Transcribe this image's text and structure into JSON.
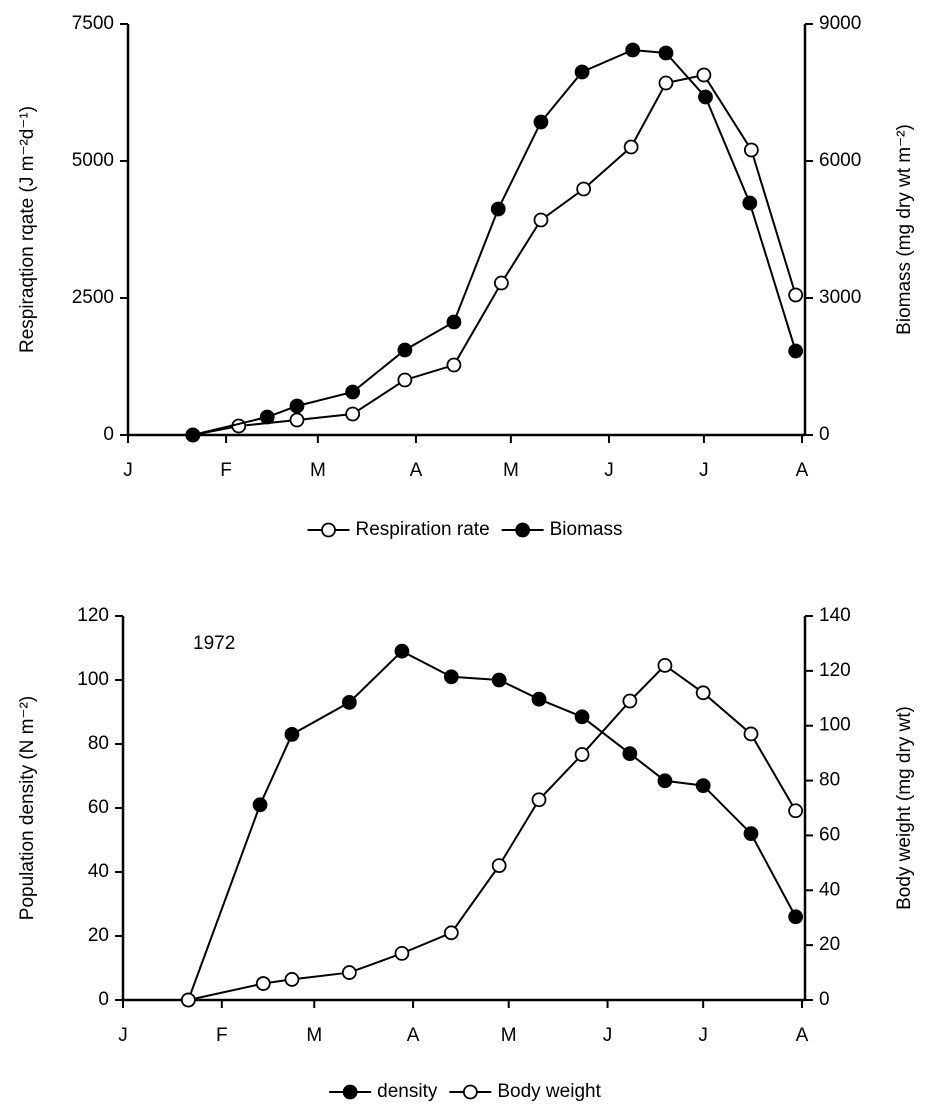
{
  "chart_data": [
    {
      "type": "line",
      "ylabel": "Respiraqtion rqate (J m⁻²d⁻¹)",
      "y2label": "Biomass (mg dry wt m⁻²)",
      "xlim": [
        0,
        213
      ],
      "xticks": [
        {
          "value": 0,
          "label": "J"
        },
        {
          "value": 31,
          "label": "F"
        },
        {
          "value": 60,
          "label": "M"
        },
        {
          "value": 91,
          "label": "A"
        },
        {
          "value": 121,
          "label": "M"
        },
        {
          "value": 152,
          "label": "J"
        },
        {
          "value": 182,
          "label": "J"
        },
        {
          "value": 213,
          "label": "A"
        }
      ],
      "ylim": [
        0,
        7500
      ],
      "yticks": [
        0,
        2500,
        5000,
        7500
      ],
      "y2lim": [
        0,
        9000
      ],
      "y2ticks": [
        0,
        3000,
        6000,
        9000
      ],
      "series": [
        {
          "name": "Respiration rate",
          "color": "#000000",
          "filled": false,
          "x": [
            20.5,
            35,
            53.4,
            71,
            87.5,
            103,
            118,
            130.5,
            144,
            159,
            170,
            182,
            197,
            211
          ],
          "values": [
            0,
            164,
            274,
            383,
            1004,
            1277,
            2774,
            3923,
            4489,
            5255,
            6423,
            6569,
            5201,
            2555
          ]
        },
        {
          "name": "Biomass",
          "color": "#000000",
          "filled": true,
          "axis": "y2",
          "x": [
            20.5,
            44,
            53.4,
            71,
            87.5,
            103,
            117,
            130.5,
            143.5,
            159.5,
            170,
            182.5,
            196.5,
            211
          ],
          "values": [
            0,
            394,
            635,
            942,
            1861,
            2475,
            4949,
            6854,
            7949,
            8431,
            8365,
            7401,
            5080,
            1839
          ]
        }
      ]
    },
    {
      "type": "line",
      "annotation": "1972",
      "ylabel": "Population density (N m⁻²)",
      "y2label": "Body weight (mg dry wt)",
      "xlim": [
        0,
        213
      ],
      "xticks": [
        {
          "value": 0,
          "label": "J"
        },
        {
          "value": 31,
          "label": "F"
        },
        {
          "value": 60,
          "label": "M"
        },
        {
          "value": 91,
          "label": "A"
        },
        {
          "value": 121,
          "label": "M"
        },
        {
          "value": 152,
          "label": "J"
        },
        {
          "value": 182,
          "label": "J"
        },
        {
          "value": 213,
          "label": "A"
        }
      ],
      "ylim": [
        0,
        120
      ],
      "yticks": [
        0,
        20,
        40,
        60,
        80,
        100,
        120
      ],
      "y2lim": [
        0,
        140
      ],
      "y2ticks": [
        0,
        20,
        40,
        60,
        80,
        100,
        120,
        140
      ],
      "series": [
        {
          "name": "density",
          "color": "#000000",
          "filled": true,
          "x": [
            20.5,
            43,
            53,
            71,
            87.5,
            103,
            118,
            130.5,
            144,
            159,
            170,
            182,
            197,
            211
          ],
          "values": [
            0,
            61,
            83,
            93,
            109,
            101,
            100,
            94,
            88.5,
            77,
            68.5,
            67,
            52,
            26
          ]
        },
        {
          "name": "Body weight",
          "color": "#000000",
          "filled": false,
          "axis": "y2",
          "x": [
            20.5,
            44,
            53,
            71,
            87.5,
            103,
            118,
            130.5,
            144,
            159,
            170,
            182,
            197,
            211
          ],
          "values": [
            0,
            6,
            7.5,
            10,
            17,
            24.5,
            49,
            73,
            89.5,
            109,
            122,
            112,
            97,
            69
          ]
        }
      ]
    }
  ]
}
